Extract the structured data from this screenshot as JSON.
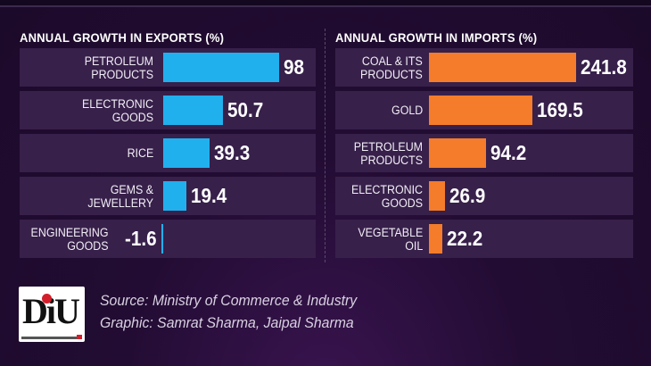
{
  "chart_data": [
    {
      "type": "bar",
      "orientation": "horizontal",
      "title": "ANNUAL GROWTH IN EXPORTS  (%)",
      "categories": [
        "PETROLEUM\nPRODUCTS",
        "ELECTRONIC\nGOODS",
        "RICE",
        "GEMS &\nJEWELLERY",
        "ENGINEERING\nGOODS"
      ],
      "values": [
        98,
        50.7,
        39.3,
        19.4,
        -1.6
      ],
      "value_labels": [
        "98",
        "50.7",
        "39.3",
        "19.4",
        "-1.6"
      ],
      "color": "#21b0ee"
    },
    {
      "type": "bar",
      "orientation": "horizontal",
      "title": "ANNUAL GROWTH IN IMPORTS  (%)",
      "categories": [
        "COAL & ITS\nPRODUCTS",
        "GOLD",
        "PETROLEUM\nPRODUCTS",
        "ELECTRONIC\nGOODS",
        "VEGETABLE\nOIL"
      ],
      "values": [
        241.8,
        169.5,
        94.2,
        26.9,
        22.2
      ],
      "value_labels": [
        "241.8",
        "169.5",
        "94.2",
        "26.9",
        "22.2"
      ],
      "color": "#f47c2a"
    }
  ],
  "footer": {
    "logo_text": "DiU",
    "source_line": "Source: Ministry of Commerce & Industry",
    "graphic_line": "Graphic: Samrat Sharma, Jaipal Sharma"
  }
}
